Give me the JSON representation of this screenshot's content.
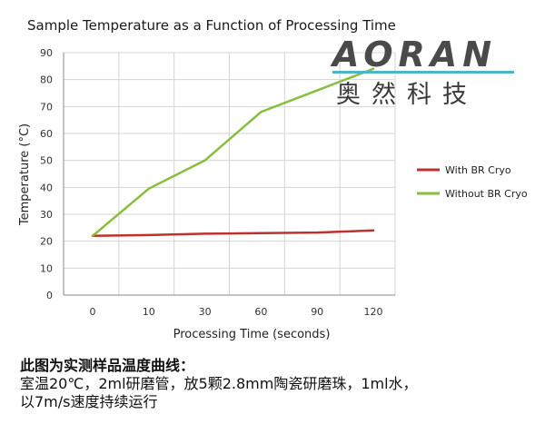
{
  "chart_data": {
    "type": "line",
    "title": "Sample Temperature as a Function of Processing Time",
    "xlabel": "Processing Time (seconds)",
    "ylabel": "Temperature (°C)",
    "categories": [
      "0",
      "10",
      "30",
      "60",
      "90",
      "120"
    ],
    "ylim": [
      0,
      90
    ],
    "yticks": [
      0,
      10,
      20,
      30,
      40,
      50,
      60,
      70,
      80,
      90
    ],
    "grid": true,
    "legend": "right",
    "series": [
      {
        "name": "With BR Cryo",
        "color": "#c0302d",
        "values": [
          22,
          22.3,
          22.8,
          23,
          23.2,
          24
        ]
      },
      {
        "name": "Without BR Cryo",
        "color": "#86bf3c",
        "values": [
          22,
          39.5,
          50,
          68,
          76,
          84
        ]
      }
    ]
  },
  "logo": {
    "word": "AORAN",
    "chinese": "奥然科技"
  },
  "caption": {
    "heading": "此图为实测样品温度曲线：",
    "line1": "室温20℃，2ml研磨管，放5颗2.8mm陶瓷研磨珠，1ml水，",
    "line2": "以7m/s速度持续运行"
  }
}
